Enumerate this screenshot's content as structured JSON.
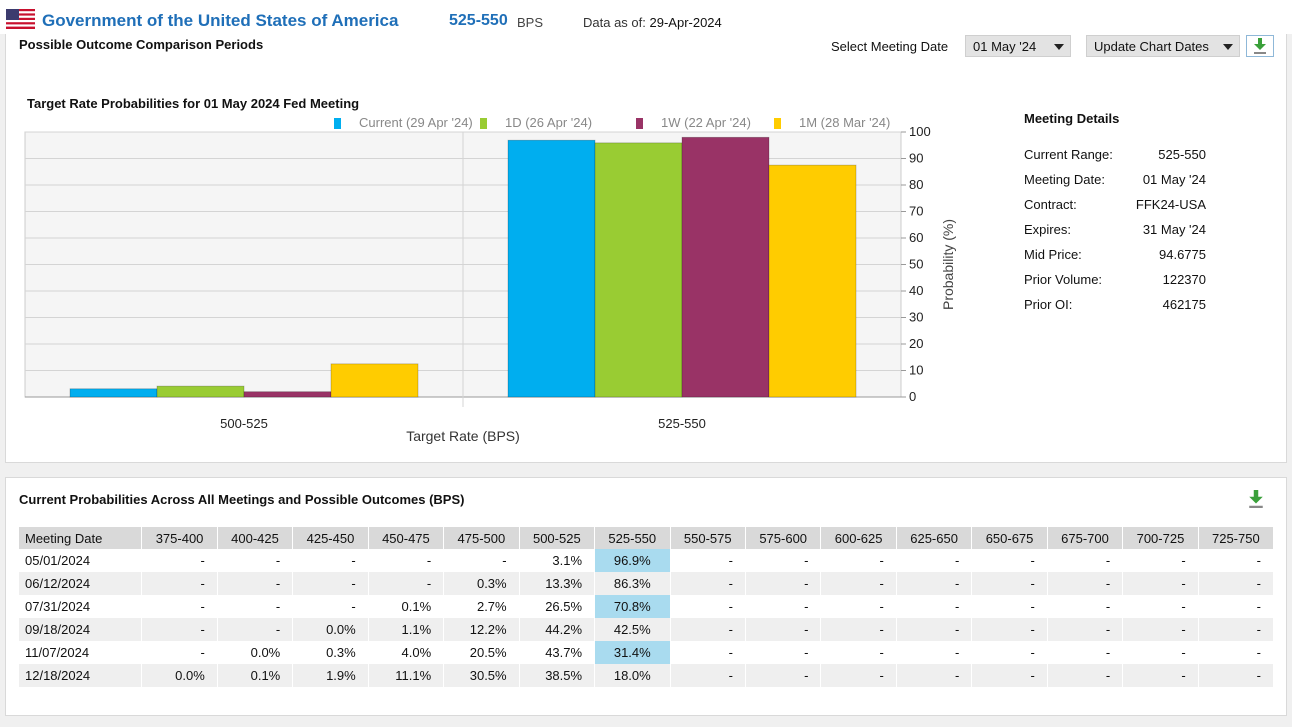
{
  "header": {
    "country": "Government of the United States of America",
    "current_range": "525-550",
    "range_unit": "BPS",
    "as_of_label": "Data as of:",
    "as_of_date": "29-Apr-2024"
  },
  "panel1": {
    "title": "Possible Outcome Comparison Periods",
    "select_meeting_label": "Select Meeting Date",
    "selected_meeting": "01 May '24",
    "update_button": "Update Chart Dates",
    "download_icon": "download-icon"
  },
  "chart_data": {
    "type": "bar",
    "title": "Target Rate Probabilities for 01 May 2024 Fed Meeting",
    "categories": [
      "500-525",
      "525-550"
    ],
    "series": [
      {
        "name": "Current (29 Apr '24)",
        "color": "#00aeef",
        "values": [
          3.1,
          96.9
        ]
      },
      {
        "name": "1D (26 Apr '24)",
        "color": "#99cc33",
        "values": [
          4.1,
          95.9
        ]
      },
      {
        "name": "1W (22 Apr '24)",
        "color": "#993366",
        "values": [
          2.0,
          98.0
        ]
      },
      {
        "name": "1M (28 Mar '24)",
        "color": "#ffcc00",
        "values": [
          12.5,
          87.5
        ]
      }
    ],
    "xlabel": "Target Rate (BPS)",
    "ylabel": "Probability (%)",
    "ylim": [
      0,
      100
    ],
    "yticks": [
      "0",
      "10",
      "20",
      "30",
      "40",
      "50",
      "60",
      "70",
      "80",
      "90",
      "100"
    ],
    "grid": true,
    "legend": "top",
    "y_axis_side": "right"
  },
  "meeting_details": {
    "title": "Meeting Details",
    "rows": [
      {
        "label": "Current Range:",
        "value": "525-550"
      },
      {
        "label": "Meeting Date:",
        "value": "01 May '24"
      },
      {
        "label": "Contract:",
        "value": "FFK24-USA"
      },
      {
        "label": "Expires:",
        "value": "31 May '24"
      },
      {
        "label": "Mid Price:",
        "value": "94.6775"
      },
      {
        "label": "Prior Volume:",
        "value": "122370"
      },
      {
        "label": "Prior OI:",
        "value": "462175"
      }
    ]
  },
  "table": {
    "title": "Current Probabilities Across All Meetings and Possible Outcomes (BPS)",
    "headers": [
      "Meeting Date",
      "375-400",
      "400-425",
      "425-450",
      "450-475",
      "475-500",
      "500-525",
      "525-550",
      "550-575",
      "575-600",
      "600-625",
      "625-650",
      "650-675",
      "675-700",
      "700-725",
      "725-750"
    ],
    "highlight_column": 7,
    "highlight_color": "#a9dbef",
    "rows": [
      [
        "05/01/2024",
        "-",
        "-",
        "-",
        "-",
        "-",
        "3.1%",
        "96.9%",
        "-",
        "-",
        "-",
        "-",
        "-",
        "-",
        "-",
        "-"
      ],
      [
        "06/12/2024",
        "-",
        "-",
        "-",
        "-",
        "0.3%",
        "13.3%",
        "86.3%",
        "-",
        "-",
        "-",
        "-",
        "-",
        "-",
        "-",
        "-"
      ],
      [
        "07/31/2024",
        "-",
        "-",
        "-",
        "0.1%",
        "2.7%",
        "26.5%",
        "70.8%",
        "-",
        "-",
        "-",
        "-",
        "-",
        "-",
        "-",
        "-"
      ],
      [
        "09/18/2024",
        "-",
        "-",
        "0.0%",
        "1.1%",
        "12.2%",
        "44.2%",
        "42.5%",
        "-",
        "-",
        "-",
        "-",
        "-",
        "-",
        "-",
        "-"
      ],
      [
        "11/07/2024",
        "-",
        "0.0%",
        "0.3%",
        "4.0%",
        "20.5%",
        "43.7%",
        "31.4%",
        "-",
        "-",
        "-",
        "-",
        "-",
        "-",
        "-",
        "-"
      ],
      [
        "12/18/2024",
        "0.0%",
        "0.1%",
        "1.9%",
        "11.1%",
        "30.5%",
        "38.5%",
        "18.0%",
        "-",
        "-",
        "-",
        "-",
        "-",
        "-",
        "-",
        "-"
      ]
    ]
  }
}
